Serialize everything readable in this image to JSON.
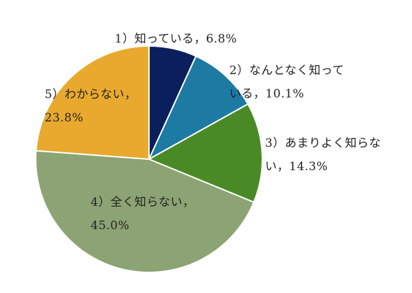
{
  "chart_data": {
    "type": "pie",
    "title": "",
    "start_angle_deg": 90,
    "direction": "clockwise",
    "slices": [
      {
        "name": "1）知っている",
        "value": 6.8,
        "label_lines": [
          "1）知っている，6.8%"
        ],
        "color": "#0b1f5c",
        "label_placement": "outside"
      },
      {
        "name": "2）なんとなく知っている",
        "value": 10.1,
        "label_lines": [
          "2）なんとなく知って",
          "いる，10.1%"
        ],
        "color": "#1c7aa3",
        "label_placement": "outside"
      },
      {
        "name": "3）あまりよく知らない",
        "value": 14.3,
        "label_lines": [
          "3）あまりよく知らな",
          "い，14.3%"
        ],
        "color": "#4a8a26",
        "label_placement": "outside"
      },
      {
        "name": "4）全く知らない",
        "value": 45.0,
        "label_lines": [
          "4）全く知らない，",
          "45.0%"
        ],
        "color": "#8ca374",
        "label_placement": "inside"
      },
      {
        "name": "5）わからない",
        "value": 23.8,
        "label_lines": [
          "5）わからない，",
          "23.8%"
        ],
        "color": "#e8a92e",
        "label_placement": "inside"
      }
    ]
  }
}
